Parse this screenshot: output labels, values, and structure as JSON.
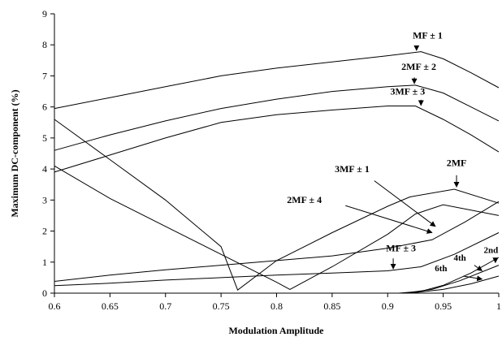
{
  "chart_data": {
    "type": "line",
    "xlabel": "Modulation Amplitude",
    "ylabel": "Maximum DC-component (%)",
    "xlim": [
      0.6,
      1
    ],
    "ylim": [
      0,
      9
    ],
    "xticks": [
      "0.6",
      "0.65",
      "0.7",
      "0.75",
      "0.8",
      "0.85",
      "0.9",
      "0.95",
      "1"
    ],
    "yticks": [
      "0",
      "1",
      "2",
      "3",
      "4",
      "5",
      "6",
      "7",
      "8",
      "9"
    ],
    "grid": false,
    "series": [
      {
        "points": [
          [
            0.6,
            5.95
          ],
          [
            0.65,
            6.3
          ],
          [
            0.7,
            6.65
          ],
          [
            0.75,
            7.0
          ],
          [
            0.8,
            7.25
          ],
          [
            0.85,
            7.45
          ],
          [
            0.9,
            7.65
          ],
          [
            0.93,
            7.78
          ],
          [
            0.95,
            7.55
          ],
          [
            0.975,
            7.1
          ],
          [
            1.0,
            6.62
          ]
        ]
      },
      {
        "points": [
          [
            0.6,
            4.6
          ],
          [
            0.65,
            5.1
          ],
          [
            0.7,
            5.55
          ],
          [
            0.75,
            5.95
          ],
          [
            0.8,
            6.25
          ],
          [
            0.85,
            6.5
          ],
          [
            0.9,
            6.65
          ],
          [
            0.925,
            6.7
          ],
          [
            0.95,
            6.45
          ],
          [
            0.975,
            6.0
          ],
          [
            1.0,
            5.55
          ]
        ]
      },
      {
        "points": [
          [
            0.6,
            3.9
          ],
          [
            0.65,
            4.45
          ],
          [
            0.7,
            5.0
          ],
          [
            0.75,
            5.5
          ],
          [
            0.8,
            5.75
          ],
          [
            0.85,
            5.9
          ],
          [
            0.9,
            6.03
          ],
          [
            0.925,
            6.03
          ],
          [
            0.95,
            5.6
          ],
          [
            0.975,
            5.1
          ],
          [
            1.0,
            4.55
          ]
        ]
      },
      {
        "points": [
          [
            0.6,
            5.6
          ],
          [
            0.65,
            4.3
          ],
          [
            0.7,
            3.0
          ],
          [
            0.75,
            1.5
          ],
          [
            0.765,
            0.1
          ],
          [
            0.8,
            1.05
          ],
          [
            0.85,
            1.95
          ],
          [
            0.9,
            2.8
          ],
          [
            0.92,
            3.1
          ],
          [
            0.96,
            3.35
          ],
          [
            1.0,
            2.9
          ]
        ]
      },
      {
        "points": [
          [
            0.6,
            4.1
          ],
          [
            0.65,
            3.05
          ],
          [
            0.7,
            2.15
          ],
          [
            0.75,
            1.25
          ],
          [
            0.8,
            0.35
          ],
          [
            0.812,
            0.12
          ],
          [
            0.85,
            0.85
          ],
          [
            0.9,
            1.9
          ],
          [
            0.925,
            2.55
          ],
          [
            0.95,
            2.85
          ],
          [
            1.0,
            2.5
          ]
        ]
      },
      {
        "points": [
          [
            0.6,
            0.38
          ],
          [
            0.65,
            0.58
          ],
          [
            0.7,
            0.75
          ],
          [
            0.75,
            0.9
          ],
          [
            0.8,
            1.05
          ],
          [
            0.85,
            1.2
          ],
          [
            0.9,
            1.45
          ],
          [
            0.94,
            1.72
          ],
          [
            0.97,
            2.3
          ],
          [
            1.0,
            2.95
          ]
        ]
      },
      {
        "points": [
          [
            0.6,
            0.24
          ],
          [
            0.65,
            0.32
          ],
          [
            0.7,
            0.42
          ],
          [
            0.75,
            0.5
          ],
          [
            0.8,
            0.58
          ],
          [
            0.85,
            0.65
          ],
          [
            0.9,
            0.72
          ],
          [
            0.93,
            0.85
          ],
          [
            0.96,
            1.25
          ],
          [
            1.0,
            1.95
          ]
        ]
      },
      {
        "points": [
          [
            0.91,
            0.0
          ],
          [
            0.93,
            0.06
          ],
          [
            0.95,
            0.25
          ],
          [
            0.975,
            0.65
          ],
          [
            1.0,
            1.15
          ]
        ]
      },
      {
        "points": [
          [
            0.915,
            0.0
          ],
          [
            0.94,
            0.12
          ],
          [
            0.965,
            0.4
          ],
          [
            1.0,
            0.9
          ]
        ]
      },
      {
        "points": [
          [
            0.92,
            0.0
          ],
          [
            0.95,
            0.12
          ],
          [
            0.975,
            0.3
          ],
          [
            1.0,
            0.55
          ]
        ]
      }
    ],
    "annotations": [
      {
        "label": "MF ± 1",
        "tx": 0.936,
        "ty": 8.2,
        "ax": 0.926,
        "ay": 7.9,
        "hx": 0.926,
        "hy": 7.82,
        "style": "large"
      },
      {
        "label": "2MF ± 2",
        "tx": 0.928,
        "ty": 7.2,
        "ax": 0.924,
        "ay": 6.95,
        "hx": 0.924,
        "hy": 6.75,
        "style": "large"
      },
      {
        "label": "3MF ± 3",
        "tx": 0.918,
        "ty": 6.4,
        "ax": 0.93,
        "ay": 6.23,
        "hx": 0.93,
        "hy": 6.05,
        "style": "large"
      },
      {
        "label": "2MF",
        "tx": 0.962,
        "ty": 4.1,
        "ax": 0.962,
        "ay": 3.8,
        "hx": 0.962,
        "hy": 3.42,
        "style": "large"
      },
      {
        "label": "3MF ± 1",
        "tx": 0.868,
        "ty": 3.9,
        "ax": 0.888,
        "ay": 3.62,
        "hx": 0.943,
        "hy": 2.15,
        "style": "large"
      },
      {
        "label": "2MF ± 4",
        "tx": 0.825,
        "ty": 2.9,
        "ax": 0.862,
        "ay": 2.82,
        "hx": 0.94,
        "hy": 1.95,
        "style": "large"
      },
      {
        "label": "MF ± 3",
        "tx": 0.912,
        "ty": 1.35,
        "ax": 0.905,
        "ay": 1.12,
        "hx": 0.905,
        "hy": 0.78,
        "style": "large"
      },
      {
        "label": "2nd",
        "tx": 0.993,
        "ty": 1.3,
        "ax": 0.997,
        "ay": 1.1,
        "hx": 0.997,
        "hy": 0.98,
        "style": "small"
      },
      {
        "label": "4th",
        "tx": 0.965,
        "ty": 1.05,
        "ax": 0.978,
        "ay": 0.9,
        "hx": 0.985,
        "hy": 0.72,
        "style": "small"
      },
      {
        "label": "6th",
        "tx": 0.948,
        "ty": 0.7,
        "ax": 0.968,
        "ay": 0.55,
        "hx": 0.985,
        "hy": 0.45,
        "style": "small"
      }
    ]
  }
}
